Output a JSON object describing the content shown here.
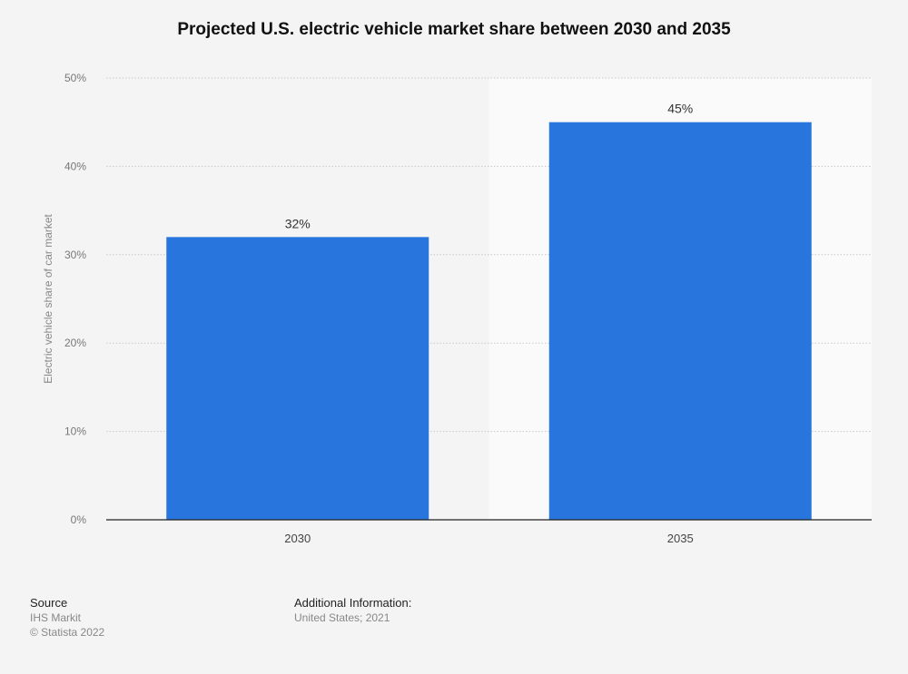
{
  "chart_data": {
    "type": "bar",
    "title": "Projected U.S. electric vehicle market share between 2030 and 2035",
    "categories": [
      "2030",
      "2035"
    ],
    "values": [
      32,
      45
    ],
    "data_labels": [
      "32%",
      "45%"
    ],
    "xlabel": "",
    "ylabel": "Electric vehicle share of car market",
    "ylim": [
      0,
      50
    ],
    "yticks": [
      "0%",
      "10%",
      "20%",
      "30%",
      "40%",
      "50%"
    ],
    "grid": true,
    "highlighted_category": "2035",
    "bar_color": "#2876dd"
  },
  "footer": {
    "source_heading": "Source",
    "source": "IHS Markit",
    "copyright": "© Statista 2022",
    "additional_heading": "Additional Information:",
    "additional": "United States; 2021"
  }
}
